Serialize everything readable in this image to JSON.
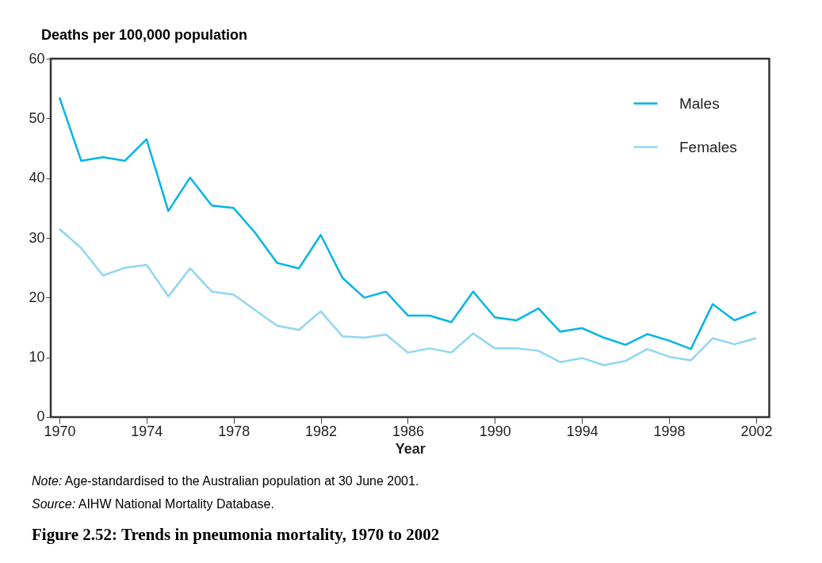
{
  "chart_data": {
    "type": "line",
    "title": "Figure 2.52: Trends in pneumonia mortality, 1970 to 2002",
    "xlabel": "Year",
    "ylabel": "Deaths per 100,000 population",
    "x": [
      1970,
      1971,
      1972,
      1973,
      1974,
      1975,
      1976,
      1977,
      1978,
      1979,
      1980,
      1981,
      1982,
      1983,
      1984,
      1985,
      1986,
      1987,
      1988,
      1989,
      1990,
      1991,
      1992,
      1993,
      1994,
      1995,
      1996,
      1997,
      1998,
      1999,
      2000,
      2001,
      2002
    ],
    "series": [
      {
        "name": "Males",
        "color": "#00b4e6",
        "values": [
          53.5,
          42.9,
          43.5,
          42.9,
          46.5,
          34.5,
          40.1,
          35.4,
          35,
          30.8,
          25.8,
          24.9,
          30.5,
          23.3,
          20,
          21,
          17,
          17,
          15.9,
          21,
          16.7,
          16.2,
          18.2,
          14.3,
          14.9,
          13.3,
          12.1,
          13.9,
          12.8,
          11.4,
          18.9,
          16.2,
          17.6
        ]
      },
      {
        "name": "Females",
        "color": "#8fd6f2",
        "values": [
          31.5,
          28.3,
          23.7,
          25,
          25.5,
          20.2,
          24.9,
          21,
          20.5,
          17.9,
          15.3,
          14.6,
          17.7,
          13.5,
          13.3,
          13.8,
          10.8,
          11.5,
          10.8,
          14,
          11.5,
          11.5,
          11.1,
          9.2,
          9.9,
          8.7,
          9.4,
          11.4,
          10.1,
          9.5,
          13.2,
          12.2,
          13.2
        ]
      }
    ],
    "xlim": [
      1969.6,
      2002.6
    ],
    "xticks": [
      1970,
      1974,
      1978,
      1982,
      1986,
      1990,
      1994,
      1998,
      2002
    ],
    "ylim": [
      0,
      60
    ],
    "yticks": [
      0,
      10,
      20,
      30,
      40,
      50,
      60
    ],
    "grid": false,
    "legend": "top right",
    "marker": "none",
    "line_style": "solid",
    "annotations": [
      "Note: Age-standardised to the Australian population at 30 June 2001.",
      "Source: AIHW National Mortality Database."
    ]
  }
}
